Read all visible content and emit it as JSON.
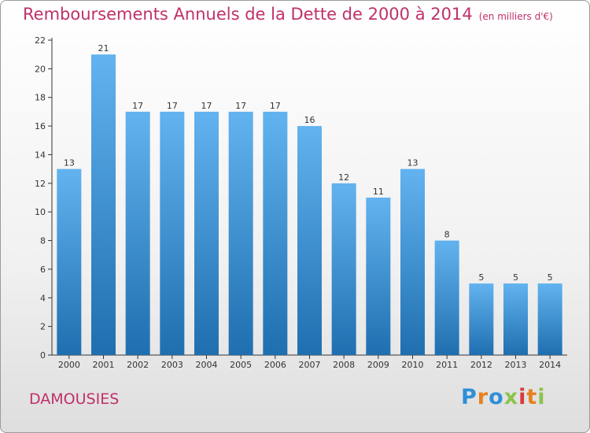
{
  "title": "Remboursements Annuels de la Dette de 2000 à 2014",
  "unit": "(en milliers d'€)",
  "town": "DAMOUSIES",
  "logo": {
    "letters": [
      "P",
      "r",
      "o",
      "x",
      "i",
      "t",
      "i"
    ],
    "colors": [
      "#2f8fd8",
      "#e6811f",
      "#2f8fd8",
      "#8bc34a",
      "#d63a3a",
      "#e6811f",
      "#8bc34a"
    ]
  },
  "colors": {
    "bar_top": "#62b3ef",
    "bar_bottom": "#1f6fb0",
    "title": "#c0306a",
    "axis": "#333333"
  },
  "chart_data": {
    "type": "bar",
    "categories": [
      "2000",
      "2001",
      "2002",
      "2003",
      "2004",
      "2005",
      "2006",
      "2007",
      "2008",
      "2009",
      "2010",
      "2011",
      "2012",
      "2013",
      "2014"
    ],
    "values": [
      13,
      21,
      17,
      17,
      17,
      17,
      17,
      16,
      12,
      11,
      13,
      8,
      5,
      5,
      5
    ],
    "title": "Remboursements Annuels de la Dette de 2000 à 2014",
    "xlabel": "",
    "ylabel": "",
    "ylim": [
      0,
      22
    ],
    "yticks": [
      0,
      2,
      4,
      6,
      8,
      10,
      12,
      14,
      16,
      18,
      20,
      22
    ],
    "grid": false
  }
}
